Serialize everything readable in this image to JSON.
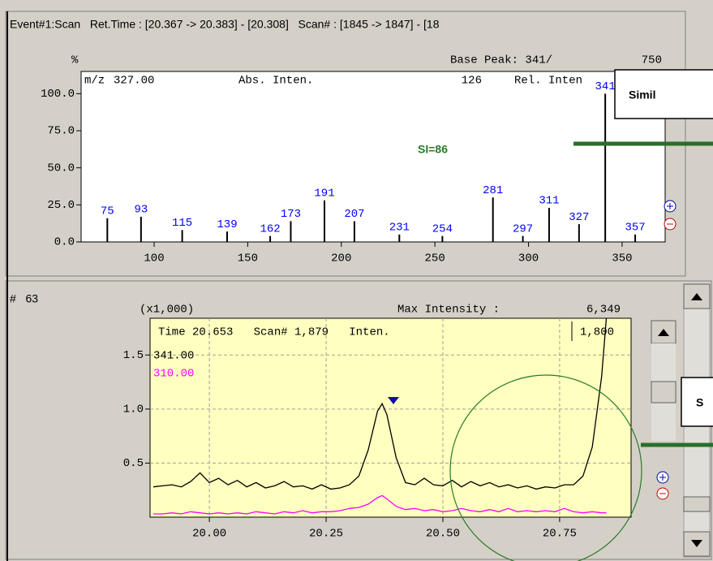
{
  "header": {
    "title": "Event#1:Scan   Ret.Time : [20.367 -> 20.383] - [20.308]   Scan# : [1845 -> 1847] - [18"
  },
  "panel": {
    "number": "#   63"
  },
  "callouts": {
    "similarity": "Simil",
    "si": "SI=86",
    "second": "S"
  },
  "chart_data": [
    {
      "type": "bar",
      "y_unit": "%",
      "info": {
        "base_peak": "Base Peak: 341/",
        "base_peak_value": "750",
        "mz": "m/z",
        "mz_value": "327.00",
        "abs": "Abs. Inten.",
        "abs_value": "126",
        "rel": "Rel. Inten"
      },
      "x": [
        75,
        93,
        115,
        139,
        162,
        173,
        191,
        207,
        231,
        254,
        281,
        297,
        311,
        327,
        341,
        357
      ],
      "series": [
        {
          "color": "#000000",
          "label_color": "#0000ff",
          "values": [
            16,
            17,
            8,
            7,
            4,
            14,
            28,
            14,
            5,
            4,
            30,
            4,
            23,
            12,
            100,
            5
          ]
        }
      ],
      "xlim": [
        61,
        373
      ],
      "ylim": [
        0,
        115
      ],
      "xticks": [
        100,
        150,
        200,
        250,
        300,
        350
      ],
      "yticks": [
        {
          "value": 0,
          "label": "0.0"
        },
        {
          "value": 25,
          "label": "25.0"
        },
        {
          "value": 50,
          "label": "50.0"
        },
        {
          "value": 75,
          "label": "75.0"
        },
        {
          "value": 100,
          "label": "100.0"
        }
      ],
      "grid": false,
      "background": "#ffffff"
    },
    {
      "type": "line",
      "y_scale_label": "(x1,000)",
      "max_intensity_label": "Max Intensity :",
      "max_intensity": "6,349",
      "cursor": "Time 20.653   Scan# 1,879   Inten.",
      "cursor_value": "1,800",
      "x": [
        19.88,
        19.9,
        19.92,
        19.94,
        19.96,
        19.98,
        20.0,
        20.02,
        20.04,
        20.06,
        20.08,
        20.1,
        20.12,
        20.14,
        20.16,
        20.18,
        20.2,
        20.22,
        20.24,
        20.26,
        20.28,
        20.3,
        20.32,
        20.34,
        20.36,
        20.37,
        20.38,
        20.4,
        20.42,
        20.44,
        20.46,
        20.48,
        20.5,
        20.52,
        20.54,
        20.56,
        20.58,
        20.6,
        20.62,
        20.64,
        20.66,
        20.68,
        20.7,
        20.72,
        20.74,
        20.76,
        20.78,
        20.8,
        20.82,
        20.84,
        20.85
      ],
      "series": [
        {
          "name": "341.00",
          "color": "#000000",
          "values": [
            0.28,
            0.29,
            0.3,
            0.28,
            0.33,
            0.41,
            0.32,
            0.36,
            0.3,
            0.34,
            0.28,
            0.32,
            0.27,
            0.29,
            0.33,
            0.28,
            0.29,
            0.26,
            0.3,
            0.26,
            0.27,
            0.3,
            0.38,
            0.62,
            0.98,
            1.05,
            0.95,
            0.55,
            0.32,
            0.3,
            0.36,
            0.3,
            0.29,
            0.34,
            0.28,
            0.33,
            0.29,
            0.32,
            0.28,
            0.3,
            0.27,
            0.29,
            0.26,
            0.28,
            0.27,
            0.3,
            0.3,
            0.38,
            0.65,
            1.3,
            1.84
          ]
        },
        {
          "name": "310.00",
          "color": "#ff00ff",
          "values": [
            0.03,
            0.03,
            0.04,
            0.03,
            0.05,
            0.04,
            0.03,
            0.04,
            0.03,
            0.04,
            0.03,
            0.05,
            0.04,
            0.03,
            0.05,
            0.04,
            0.06,
            0.04,
            0.05,
            0.05,
            0.06,
            0.08,
            0.09,
            0.12,
            0.18,
            0.2,
            0.17,
            0.1,
            0.07,
            0.08,
            0.06,
            0.07,
            0.05,
            0.06,
            0.08,
            0.06,
            0.05,
            0.07,
            0.05,
            0.08,
            0.05,
            0.06,
            0.05,
            0.06,
            0.05,
            0.08,
            0.05,
            0.04,
            0.05,
            0.04,
            0.04
          ]
        }
      ],
      "xlim": [
        19.873,
        20.903
      ],
      "ylim": [
        0,
        1.84
      ],
      "xticks": [
        {
          "value": 20.0,
          "label": "20.00"
        },
        20.25,
        {
          "value": 20.5,
          "label": "20.50"
        },
        20.75
      ],
      "yticks": [
        0.5,
        {
          "value": 1.0,
          "label": "1.0"
        },
        1.5
      ],
      "grid": true,
      "background": "#ffffc0"
    }
  ]
}
